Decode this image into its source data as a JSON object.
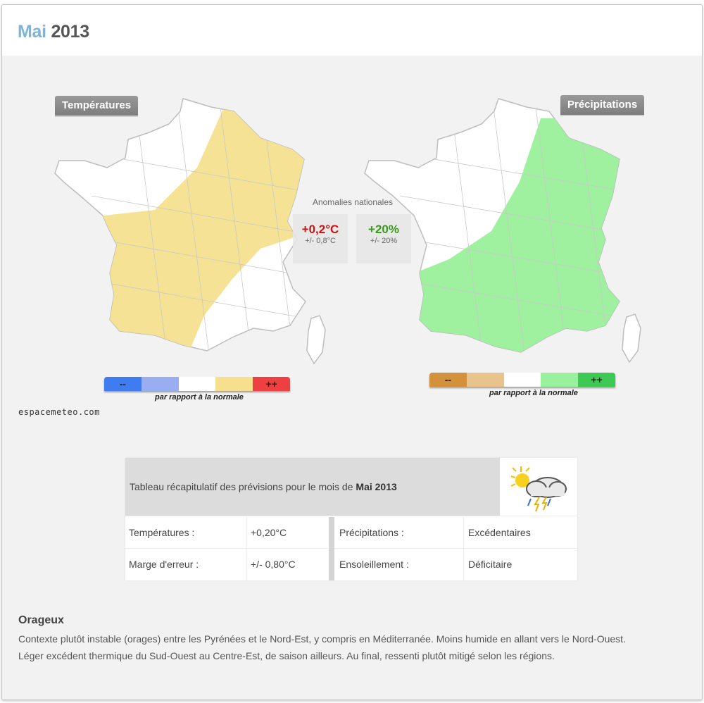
{
  "header": {
    "month": "Mai",
    "year": "2013"
  },
  "maps": {
    "temperature": {
      "label": "Températures",
      "legend": [
        "--",
        "",
        "",
        "",
        "++"
      ],
      "legend_colors": [
        "#3f7cf0",
        "#99aef0",
        "#ffffff",
        "#f6e08f",
        "#ee4040"
      ],
      "caption": "par rapport à la normale",
      "area_color": "#f6e08f"
    },
    "precipitation": {
      "label": "Précipitations",
      "legend": [
        "--",
        "",
        "",
        "",
        "++"
      ],
      "legend_colors": [
        "#d2913a",
        "#e9c38c",
        "#ffffff",
        "#99f09d",
        "#3ec954"
      ],
      "caption": "par rapport à la normale",
      "area_color": "#9af09b"
    }
  },
  "anomalies": {
    "title": "Anomalies nationales",
    "temperature_value": "+0,2°C",
    "temperature_error": "+/- 0,8°C",
    "temperature_color": "#cc1111",
    "precipitation_value": "+20%",
    "precipitation_error": "+/- 20%",
    "precipitation_color": "#3a9a1a"
  },
  "source": "espacemeteo.com",
  "summary": {
    "heading_prefix": "Tableau récapitulatif des prévisions pour le mois de ",
    "heading_bold": "Mai 2013",
    "weather_icon": "sun-cloud-storm-icon",
    "rows": [
      {
        "label1": "Températures :",
        "value1": "+0,20°C",
        "label2": "Précipitations :",
        "value2": "Excédentaires"
      },
      {
        "label1": "Marge d'erreur :",
        "value1": "+/- 0,80°C",
        "label2": "Ensoleillement :",
        "value2": "Déficitaire"
      }
    ]
  },
  "description": {
    "title": "Orageux",
    "line1": "Contexte plutôt instable (orages) entre les Pyrénées et le Nord-Est, y compris en Méditerranée. Moins humide en allant vers le Nord-Ouest.",
    "line2": "Léger excédent thermique du Sud-Ouest au Centre-Est, de saison ailleurs. Au final, ressenti plutôt mitigé selon les régions."
  }
}
